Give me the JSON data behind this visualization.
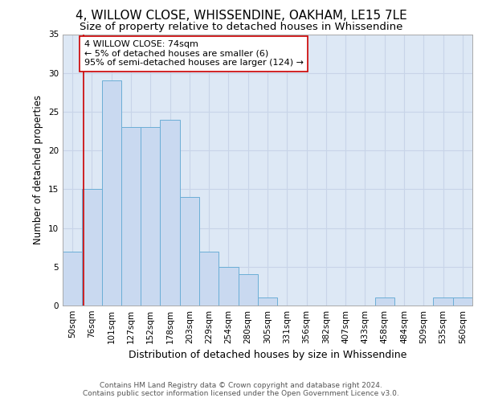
{
  "title": "4, WILLOW CLOSE, WHISSENDINE, OAKHAM, LE15 7LE",
  "subtitle": "Size of property relative to detached houses in Whissendine",
  "xlabel": "Distribution of detached houses by size in Whissendine",
  "ylabel": "Number of detached properties",
  "bar_labels": [
    "50sqm",
    "76sqm",
    "101sqm",
    "127sqm",
    "152sqm",
    "178sqm",
    "203sqm",
    "229sqm",
    "254sqm",
    "280sqm",
    "305sqm",
    "331sqm",
    "356sqm",
    "382sqm",
    "407sqm",
    "433sqm",
    "458sqm",
    "484sqm",
    "509sqm",
    "535sqm",
    "560sqm"
  ],
  "bar_values": [
    7,
    15,
    29,
    23,
    23,
    24,
    14,
    7,
    5,
    4,
    1,
    0,
    0,
    0,
    0,
    0,
    1,
    0,
    0,
    1,
    1
  ],
  "bar_color": "#c9d9f0",
  "bar_edge_color": "#6baed6",
  "grid_color": "#c8d4e8",
  "bg_color": "#dde8f5",
  "property_line_x": 0.55,
  "property_line_color": "#cc0000",
  "annotation_text": "4 WILLOW CLOSE: 74sqm\n← 5% of detached houses are smaller (6)\n95% of semi-detached houses are larger (124) →",
  "annotation_box_color": "#ffffff",
  "annotation_box_edge_color": "#cc0000",
  "footer_line1": "Contains HM Land Registry data © Crown copyright and database right 2024.",
  "footer_line2": "Contains public sector information licensed under the Open Government Licence v3.0.",
  "ylim": [
    0,
    35
  ],
  "yticks": [
    0,
    5,
    10,
    15,
    20,
    25,
    30,
    35
  ],
  "title_fontsize": 11,
  "subtitle_fontsize": 9.5,
  "xlabel_fontsize": 9,
  "ylabel_fontsize": 8.5,
  "tick_fontsize": 7.5,
  "annotation_fontsize": 8,
  "footer_fontsize": 6.5
}
